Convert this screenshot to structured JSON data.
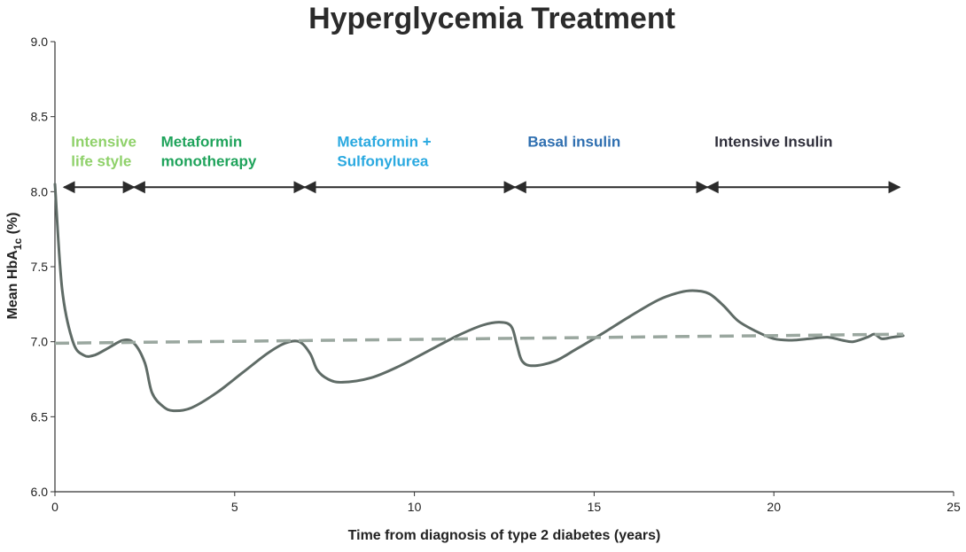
{
  "chart_data": {
    "type": "line",
    "title": "Hyperglycemia Treatment",
    "xlabel": "Time from diagnosis of type 2 diabetes (years)",
    "ylabel": {
      "prefix": "Mean HbA",
      "subscript": "1c",
      "suffix": " (%)"
    },
    "xlim": [
      0,
      25
    ],
    "ylim": [
      6.0,
      9.0
    ],
    "x_ticks": [
      "0",
      "5",
      "10",
      "15",
      "20",
      "25"
    ],
    "y_ticks": [
      "6.0",
      "6.5",
      "7.0",
      "7.5",
      "8.0",
      "8.5",
      "9.0"
    ],
    "grid": false,
    "series": [
      {
        "color": "#5f6b66",
        "x": [
          0,
          0.2,
          0.5,
          0.8,
          1.1,
          1.5,
          1.9,
          2.2,
          2.5,
          2.7,
          3.0,
          3.3,
          3.8,
          4.5,
          5.2,
          5.9,
          6.4,
          6.8,
          7.1,
          7.3,
          7.6,
          8.0,
          8.8,
          9.6,
          10.4,
          11.2,
          11.9,
          12.4,
          12.7,
          12.85,
          13.0,
          13.3,
          13.9,
          14.5,
          15.2,
          16.0,
          16.8,
          17.4,
          17.8,
          18.2,
          18.6,
          19.0,
          19.5,
          20.0,
          20.5,
          21.0,
          21.5,
          21.9,
          22.2,
          22.6,
          22.8,
          23.0,
          23.3,
          23.6
        ],
        "y": [
          8.05,
          7.35,
          7.0,
          6.91,
          6.91,
          6.96,
          7.01,
          6.99,
          6.86,
          6.66,
          6.57,
          6.54,
          6.56,
          6.66,
          6.79,
          6.92,
          6.99,
          7.0,
          6.92,
          6.81,
          6.75,
          6.73,
          6.76,
          6.84,
          6.94,
          7.04,
          7.11,
          7.13,
          7.1,
          6.98,
          6.87,
          6.84,
          6.87,
          6.95,
          7.05,
          7.17,
          7.28,
          7.33,
          7.34,
          7.32,
          7.24,
          7.14,
          7.07,
          7.02,
          7.01,
          7.02,
          7.03,
          7.01,
          7.0,
          7.03,
          7.05,
          7.02,
          7.03,
          7.04
        ]
      },
      {
        "color": "#9aa79f",
        "dashed": true,
        "x": [
          0,
          23.6
        ],
        "y": [
          6.99,
          7.05
        ]
      }
    ],
    "phases": [
      {
        "label_lines": [
          "Intensive",
          "life style"
        ],
        "color": "#8fd16a",
        "start": 0.25,
        "end": 2.2,
        "label_x": 0.45
      },
      {
        "label_lines": [
          "Metaformin",
          "monotherapy"
        ],
        "color": "#1fa35b",
        "start": 2.2,
        "end": 6.95,
        "label_x": 2.95
      },
      {
        "label_lines": [
          "Metaformin +",
          "Sulfonylurea"
        ],
        "color": "#2aa9e0",
        "start": 6.95,
        "end": 12.8,
        "label_x": 7.85
      },
      {
        "label_lines": [
          "Basal insulin"
        ],
        "color": "#2f6fb0",
        "start": 12.8,
        "end": 18.15,
        "label_x": 13.15
      },
      {
        "label_lines": [
          "Intensive Insulin"
        ],
        "color": "#2e2e3a",
        "start": 18.15,
        "end": 23.5,
        "label_x": 18.35
      }
    ],
    "phase_arrow_y": 8.03,
    "phase_label_y": 8.3
  }
}
